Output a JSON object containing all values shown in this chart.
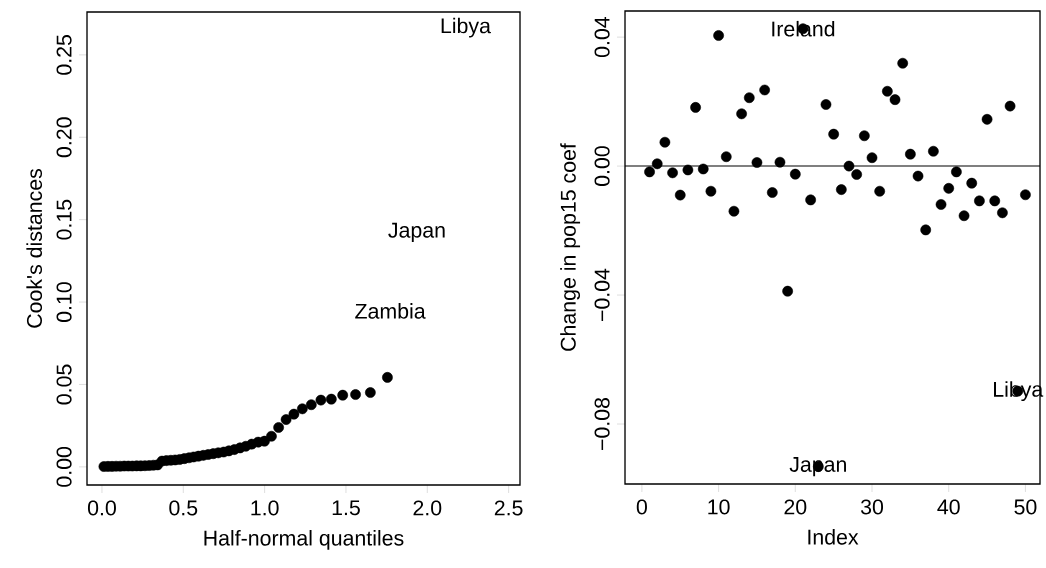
{
  "chart_data": [
    {
      "type": "scatter",
      "xlabel": "Half-normal quantiles",
      "ylabel": "Cook's distances",
      "marker": "circle",
      "series": [
        {
          "color": "#000000",
          "x": [
            0.012,
            0.037,
            0.062,
            0.087,
            0.112,
            0.137,
            0.162,
            0.187,
            0.213,
            0.238,
            0.264,
            0.29,
            0.316,
            0.342,
            0.369,
            0.396,
            0.423,
            0.45,
            0.478,
            0.506,
            0.535,
            0.563,
            0.593,
            0.623,
            0.653,
            0.684,
            0.715,
            0.748,
            0.78,
            0.814,
            0.849,
            0.884,
            0.921,
            0.96,
            0.999,
            1.042,
            1.086,
            1.132,
            1.18,
            1.232,
            1.287,
            1.346,
            1.41,
            1.48,
            1.559,
            1.65,
            1.755
          ],
          "values": [
            0.0002,
            0.0003,
            0.0003,
            0.0004,
            0.0004,
            0.0005,
            0.0005,
            0.0005,
            0.0006,
            0.0006,
            0.0007,
            0.0008,
            0.001,
            0.0012,
            0.0035,
            0.0038,
            0.004,
            0.0042,
            0.0045,
            0.005,
            0.0055,
            0.006,
            0.0065,
            0.007,
            0.0075,
            0.008,
            0.0085,
            0.009,
            0.0097,
            0.0105,
            0.0115,
            0.0125,
            0.0138,
            0.015,
            0.0156,
            0.0186,
            0.0239,
            0.0287,
            0.032,
            0.0352,
            0.0377,
            0.0405,
            0.0411,
            0.0435,
            0.0439,
            0.0451,
            0.0543
          ]
        }
      ],
      "annotations": [
        "Libya",
        "Japan",
        "Zambia"
      ],
      "xlim": [
        -0.092,
        2.57
      ],
      "ylim": [
        -0.011,
        0.276
      ],
      "xticks": [
        {
          "value": 0,
          "label": "0.0"
        },
        {
          "value": 0.5,
          "label": "0.5"
        },
        {
          "value": 1,
          "label": "1.0"
        },
        {
          "value": 1.5,
          "label": "1.5"
        },
        {
          "value": 2,
          "label": "2.0"
        },
        {
          "value": 2.5,
          "label": "2.5"
        }
      ],
      "yticks": [
        {
          "value": 0,
          "label": "0.00"
        },
        0.05,
        {
          "value": 0.1,
          "label": "0.10"
        },
        0.15,
        {
          "value": 0.2,
          "label": "0.20"
        },
        0.25
      ]
    },
    {
      "type": "scatter",
      "xlabel": "Index",
      "ylabel": "Change in pop15 coef",
      "marker": "circle",
      "series": [
        {
          "color": "#000000",
          "x": [
            1,
            2,
            3,
            4,
            5,
            6,
            7,
            8,
            9,
            10,
            11,
            12,
            13,
            14,
            15,
            16,
            17,
            18,
            19,
            20,
            21,
            22,
            23,
            24,
            25,
            26,
            27,
            28,
            29,
            30,
            31,
            32,
            33,
            34,
            35,
            36,
            37,
            38,
            39,
            40,
            41,
            42,
            43,
            44,
            45,
            46,
            47,
            48,
            49,
            50
          ],
          "values": [
            -0.0018,
            0.0007,
            0.0074,
            -0.0021,
            -0.009,
            -0.0012,
            0.0182,
            -0.0009,
            -0.0078,
            0.0405,
            0.0029,
            -0.014,
            0.0162,
            0.0212,
            0.0011,
            0.0236,
            -0.0082,
            0.0012,
            -0.0388,
            -0.0025,
            0.0426,
            -0.0105,
            -0.0932,
            0.0191,
            0.0099,
            -0.0073,
            0.0,
            -0.0026,
            0.0094,
            0.0026,
            -0.0078,
            0.0232,
            0.0206,
            0.0319,
            0.0037,
            -0.0031,
            -0.0198,
            0.0046,
            -0.0119,
            -0.0069,
            -0.0018,
            -0.0154,
            -0.0053,
            -0.0108,
            0.0145,
            -0.0108,
            -0.0145,
            0.0186,
            -0.0698,
            -0.0089
          ]
        }
      ],
      "annotations": [
        {
          "text": "Ireland",
          "x": 21,
          "y": 0.0426
        },
        {
          "text": "Japan",
          "x": 23,
          "y": -0.0932
        },
        {
          "text": "Libya",
          "x": 49,
          "y": -0.0698
        }
      ],
      "ref_lines": [
        {
          "axis": "y",
          "value": 0
        }
      ],
      "xlim": [
        -2.2,
        51.9
      ],
      "ylim": [
        -0.0986,
        0.0481
      ],
      "xticks": [
        0,
        10,
        20,
        30,
        40,
        50
      ],
      "yticks": [
        {
          "value": -0.08,
          "label": "−0.08"
        },
        {
          "value": -0.04,
          "label": "−0.04"
        },
        {
          "value": 0,
          "label": "0.00"
        },
        0.04
      ]
    }
  ]
}
